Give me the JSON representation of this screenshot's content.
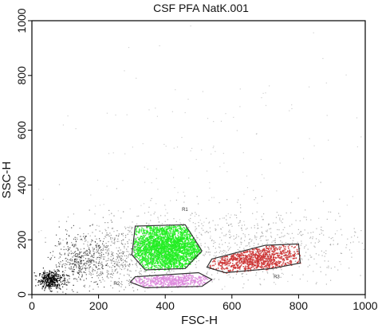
{
  "chart_data": {
    "type": "scatter",
    "title": "CSF PFA NatK.001",
    "xlabel": "FSC-H",
    "ylabel": "SSC-H",
    "xlim": [
      0,
      1000
    ],
    "ylim": [
      0,
      1000
    ],
    "x_ticks": [
      0,
      200,
      400,
      600,
      800,
      1000
    ],
    "x_tick_labels": [
      "0",
      "200",
      "400",
      "600",
      "800",
      "1000"
    ],
    "y_ticks": [
      0,
      200,
      400,
      600,
      800,
      1000
    ],
    "y_tick_labels": [
      "0",
      "200",
      "400",
      "600",
      "800",
      "1000"
    ],
    "grid": false,
    "point_color": "#000000",
    "gates": [
      {
        "label": "R1",
        "color": "#22ee22",
        "polygon": [
          [
            310,
            250
          ],
          [
            460,
            255
          ],
          [
            510,
            160
          ],
          [
            460,
            95
          ],
          [
            340,
            90
          ],
          [
            300,
            145
          ]
        ],
        "label_at": [
          450,
          305
        ]
      },
      {
        "label": "R2",
        "color": "#dd88dd",
        "polygon": [
          [
            310,
            65
          ],
          [
            500,
            80
          ],
          [
            540,
            55
          ],
          [
            510,
            30
          ],
          [
            340,
            25
          ],
          [
            295,
            45
          ]
        ],
        "label_at": [
          245,
          35
        ]
      },
      {
        "label": "R3",
        "color": "#cc3333",
        "polygon": [
          [
            540,
            130
          ],
          [
            700,
            180
          ],
          [
            800,
            185
          ],
          [
            805,
            115
          ],
          [
            720,
            95
          ],
          [
            580,
            80
          ],
          [
            525,
            100
          ]
        ],
        "label_at": [
          725,
          60
        ]
      }
    ]
  }
}
